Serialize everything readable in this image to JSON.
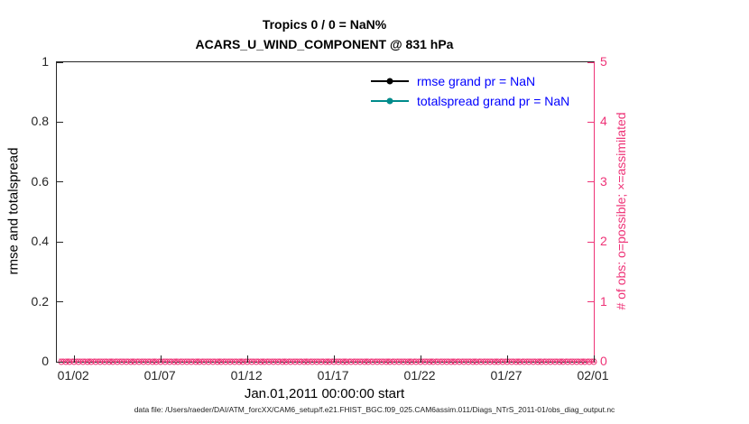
{
  "figure": {
    "footer": "data file: /Users/raeder/DAI/ATM_forcXX/CAM6_setup/f.e21.FHIST_BGC.f09_025.CAM6assim.011/Diags_NTrS_2011-01/obs_diag_output.nc"
  },
  "chart_data": {
    "type": "line",
    "title": "Tropics 0 / 0 = NaN%",
    "subtitle": "ACARS_U_WIND_COMPONENT @ 831 hPa",
    "xlabel": "Jan.01,2011 00:00:00 start",
    "ylabel_left": "rmse and totalspread",
    "ylabel_right": "# of obs: o=possible; ×=assimilated",
    "ylim_left": [
      0,
      1
    ],
    "ylim_right": [
      0,
      5
    ],
    "grid": "off",
    "legend_position": "upper-right-inside",
    "y_ticks_left": [
      0,
      0.2,
      0.4,
      0.6,
      0.8,
      1
    ],
    "y_ticks_right": [
      0,
      1,
      2,
      3,
      4,
      5
    ],
    "x_axis": {
      "start": "2011-01-01 00:00:00",
      "end": "2011-02-01 00:00:00",
      "span_days": 31,
      "ticks": [
        {
          "label": "01/02",
          "day": 1
        },
        {
          "label": "01/07",
          "day": 6
        },
        {
          "label": "01/12",
          "day": 11
        },
        {
          "label": "01/17",
          "day": 16
        },
        {
          "label": "01/22",
          "day": 21
        },
        {
          "label": "01/27",
          "day": 26
        },
        {
          "label": "02/01",
          "day": 31
        }
      ]
    },
    "legend": [
      {
        "label": "rmse grand pr = NaN",
        "color": "#000000"
      },
      {
        "label": "totalspread grand pr = NaN",
        "color": "#008b8b"
      }
    ],
    "series": [
      {
        "name": "rmse",
        "axis": "left",
        "color": "#000000",
        "values": "NaN"
      },
      {
        "name": "totalspread",
        "axis": "left",
        "color": "#008b8b",
        "values": "NaN"
      },
      {
        "name": "obs possible",
        "axis": "right",
        "marker": "o",
        "color": "#ee3377",
        "n_points": 124,
        "interval_days": 0.25,
        "constant_value": 0
      },
      {
        "name": "obs assimilated",
        "axis": "right",
        "marker": "x",
        "color": "#ee3377",
        "n_points": 124,
        "interval_days": 0.25,
        "constant_value": 0
      }
    ],
    "colors": {
      "right_axis": "#ee3377",
      "legend_text": "#0000ff",
      "axis": "#262626"
    }
  }
}
